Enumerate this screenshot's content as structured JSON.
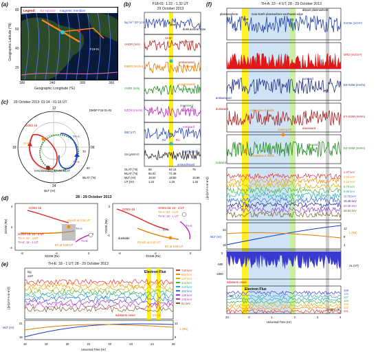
{
  "panel_a": {
    "label": "(a)",
    "legend_title": "Legend:",
    "legend_items": [
      "dip equator",
      "magnetic meridian"
    ],
    "ylabel": "Geographic Latitude (°N)",
    "xlabel": "Geographic Longitude (°E)",
    "yticks": [
      "80",
      "60",
      "40",
      "20"
    ],
    "xticks": [
      "180",
      "240",
      "300",
      "360"
    ],
    "annotations": [
      "F18-01"
    ],
    "colors": {
      "ocean": "#0a1a3a",
      "land": "#1c3a1c",
      "meridian": "#3a5cff",
      "equator": "#ff66cc",
      "track": "#ff8a1a"
    }
  },
  "panel_b": {
    "label": "(b)",
    "title": "F18-01: 1.22 - 1.32 UT",
    "subtitle": "29 October 2013",
    "rows": [
      {
        "ylabel": "log Ni * 10³ (cm⁻³)",
        "annotations": [
          "PP",
          "dusk auroral zone",
          "SAID"
        ],
        "color": "#1f3ea8"
      },
      {
        "ylabel": "VHOR (m/s)",
        "ticks": [
          "5000",
          "4000",
          "3000",
          "2000",
          "1000",
          "0"
        ],
        "annotations": [
          "sunward",
          "antisunward"
        ],
        "color": "#b22222"
      },
      {
        "ylabel": "EMER (mV/m)",
        "annotations": [
          "poleward",
          "equatorward"
        ],
        "color": "#e07b00"
      },
      {
        "ylabel": "VVER (m/s)",
        "annotations": [
          "upward",
          "downward"
        ],
        "color": "#1e8a1e"
      },
      {
        "ylabel": "EZON (mV/m)",
        "annotations": [
          "westward",
          "eastward"
        ],
        "color": "#c020c0"
      },
      {
        "ylabel": "δBZ (nT)",
        "annotations": [
          "R2",
          "R1",
          "Jp"
        ],
        "color": "#2040c0"
      },
      {
        "ylabel": "SII (µW/m²)",
        "annotations": [
          "earthward",
          "antiearthward"
        ],
        "color": "#2a2a2a"
      }
    ],
    "footer_labels": [
      "GLAT (°N)",
      "MLAT (°N)",
      "MLT (Hr)",
      "UT (Hr)"
    ],
    "footer_cols": [
      [
        "55",
        "65.01",
        "19.04",
        "1.22"
      ],
      [
        "62.14",
        "71.46",
        "18.50",
        "1.26"
      ],
      [
        "75",
        "",
        "15.65",
        "1.32"
      ]
    ]
  },
  "panel_c": {
    "label": "(c)",
    "title": "29 October 2013: 01:14 - 01:16 UT",
    "annotations": [
      "DMSP F18 01-02",
      "GOES-15",
      "TH-A",
      "TH-E",
      "SAID",
      "H-M Boundary at ~71 MLAT",
      "70",
      "60"
    ],
    "ticks": [
      "12",
      "18",
      "06",
      "24"
    ],
    "xlabel": "MLT (Hr)",
    "rlabel": "MLAT (°N)"
  },
  "panel_d": {
    "label": "(d)",
    "title": "28 - 29 October 2013",
    "left": {
      "xlabel": "XGSM (Re)",
      "ylabel": "ZGSM (Re)",
      "xticks": [
        "-8",
        "-4",
        "0"
      ],
      "yticks": [
        "4",
        "0",
        "-4"
      ],
      "annotations": [
        "GOES-15",
        "ESAID at 0.18 UT",
        "TH-E",
        "TH-A",
        "EC at 0.88 UT"
      ],
      "legend": [
        "GOES-15: 23 - 4 UT",
        "TH-A: 23 - 4 UT",
        "TH-E: 18 - 1 UT"
      ]
    },
    "right": {
      "xlabel": "XGSM (Re)",
      "ylabel": "YGSM (Re)",
      "xticks": [
        "-8",
        "-4",
        "0"
      ],
      "yticks": [
        "0",
        "-4"
      ],
      "annotations": [
        "duskside",
        "GOES-15",
        "TH-A",
        "TH-E",
        "ESAID at 0.18 UT",
        "EC at 0.88 UT"
      ],
      "legend": [
        "GOES-15: 23 - 4 UT",
        "TH-A: 23 - 4 UT",
        "TH-E: 18 - 1 UT"
      ]
    }
  },
  "panel_e": {
    "label": "(e)",
    "title": "TH-E: 18 - 1 UT; 28 - 29 October 2013",
    "annotations": [
      "Electron Flux",
      "substorm onset",
      "ESAID",
      "log",
      "x10⁶"
    ],
    "ylabel": "j [e/(cm²-s-sr-eV)]",
    "energies": [
      "740 keV",
      "562 keV",
      "427 keV",
      "323 keV",
      "243 keV",
      "182 keV",
      "136 keV",
      "108 keV",
      "82 keV"
    ],
    "energy_colors": [
      "#e03030",
      "#ff8a00",
      "#d4b000",
      "#3db33d",
      "#1ab0b0",
      "#2f6ae0",
      "#8a3ad0",
      "#c23ab0",
      "#7a5a2a"
    ],
    "lower_left": "MLT (Hr)",
    "lower_right": "L (Re)",
    "lower_yticks_left": [
      "21",
      "18"
    ],
    "lower_yticks_right": [
      "12",
      "8"
    ],
    "xticks": [
      "18",
      "19",
      "20",
      "21",
      "22",
      "23",
      "24",
      "25"
    ],
    "xlabel": "Universal Time (Hr)"
  },
  "panel_f": {
    "label": "(f)",
    "title": "TH-A: 23 - 4 UT; 28 - 29 October 2013",
    "regions": [
      "plasmasphere",
      "PP",
      "near-Earth plasmasheet earthward edge",
      "TB",
      "distant plasmasheet"
    ],
    "rows": [
      {
        "right": "hot Ne (1/cm³)",
        "annotations": [
          "VG"
        ],
        "color": "#1f3ea8"
      },
      {
        "right": "MRZ (eV/cm³)",
        "annotations": [
          "hot ions"
        ],
        "color": "#e01818"
      },
      {
        "right": "EX-GSM (mV/m)",
        "annotations": [
          "sunward",
          "antisunward"
        ],
        "color": "#1f2e80"
      },
      {
        "right": "EY-GSM (mV/m)",
        "annotations": [
          "duskward",
          "convective E fields",
          "dawnward"
        ],
        "color": "#a02020"
      },
      {
        "right": "EZ-GSM (mV/m)",
        "annotations": [
          "rotating EC",
          "inward",
          "outward",
          "convective E fields"
        ],
        "color": "#1e8a1e"
      }
    ],
    "ion_energies": [
      "2.97 keV",
      "3.92 keV",
      "5.18 keV",
      "6.79 keV",
      "8.95 keV",
      "11.76 keV",
      "15.48 keV",
      "20.38 keV",
      "26.83 keV"
    ],
    "ion_colors": [
      "#e03030",
      "#ff8a00",
      "#d4b000",
      "#3db33d",
      "#1ab0b0",
      "#2f6ae0",
      "#1a1a9a",
      "#8a3ad0",
      "#7a5a2a"
    ],
    "ion_ylabel": "j [e/(cm²-s-sr-eV)]",
    "mlt_label": "MLT (Hr)",
    "l_label": "L (Re)",
    "mlt_ticks": [
      "24",
      "18"
    ],
    "l_ticks": [
      "12",
      "8",
      "4"
    ],
    "al_label": "AL (nT)",
    "al_ticks": [
      "0",
      "-500",
      "-1000"
    ],
    "lower_annotations": [
      "substorm onset",
      "Electron Flux",
      "log",
      "GOES-15"
    ],
    "goes_channels": [
      "109",
      "105",
      "107",
      "104",
      "103",
      "102",
      "101"
    ],
    "goes_colors": [
      "#3a3ad0",
      "#3aa0d0",
      "#1ab0b0",
      "#3db33d",
      "#d4b000",
      "#ff8a00",
      "#e03030"
    ],
    "xticks": [
      "23",
      "0",
      "1",
      "2",
      "3",
      "4"
    ],
    "xlabel": "Universal Time (Hr)"
  }
}
